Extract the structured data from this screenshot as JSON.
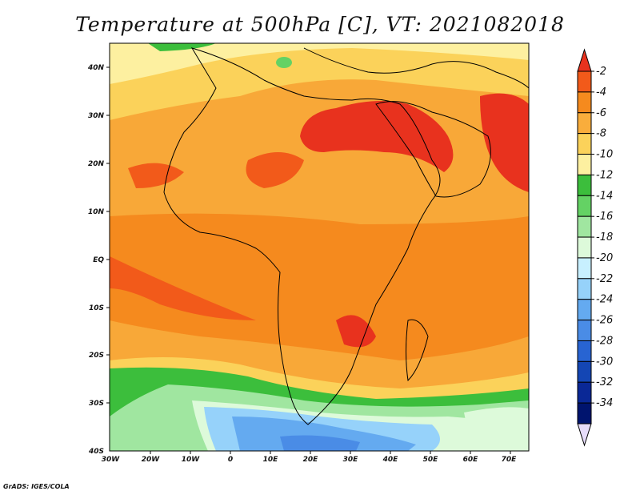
{
  "title": "Temperature at 500hPa [C], VT: 2021082018",
  "credit": "GrADS: IGES/COLA",
  "axes": {
    "lat_labels": [
      "40N",
      "30N",
      "20N",
      "10N",
      "EQ",
      "10S",
      "20S",
      "30S",
      "40S"
    ],
    "lon_labels": [
      "30W",
      "20W",
      "10W",
      "0",
      "10E",
      "20E",
      "30E",
      "40E",
      "50E",
      "60E",
      "70E"
    ]
  },
  "colorbar": {
    "labels": [
      "-2",
      "-4",
      "-6",
      "-8",
      "-10",
      "-12",
      "-14",
      "-16",
      "-18",
      "-20",
      "-22",
      "-24",
      "-26",
      "-28",
      "-30",
      "-32",
      "-34"
    ],
    "colors": [
      "#e8321e",
      "#f25a1a",
      "#f58a1e",
      "#f9ad3c",
      "#fbd25a",
      "#fdf0a0",
      "#3cbe3c",
      "#64d264",
      "#a0e6a0",
      "#ddfada",
      "#c8f0ff",
      "#96d2fa",
      "#64aaf0",
      "#4a8ce6",
      "#2864d2",
      "#1446b4",
      "#0a2896",
      "#00146e",
      "#e6dcfa"
    ]
  },
  "legend_colors": {
    "ocean_warm": "#f5a030",
    "land_warm": "#f58a1e",
    "hot_core": "#e8321e",
    "cool_band": "#3cbe3c",
    "cold_core": "#64aaf0"
  }
}
